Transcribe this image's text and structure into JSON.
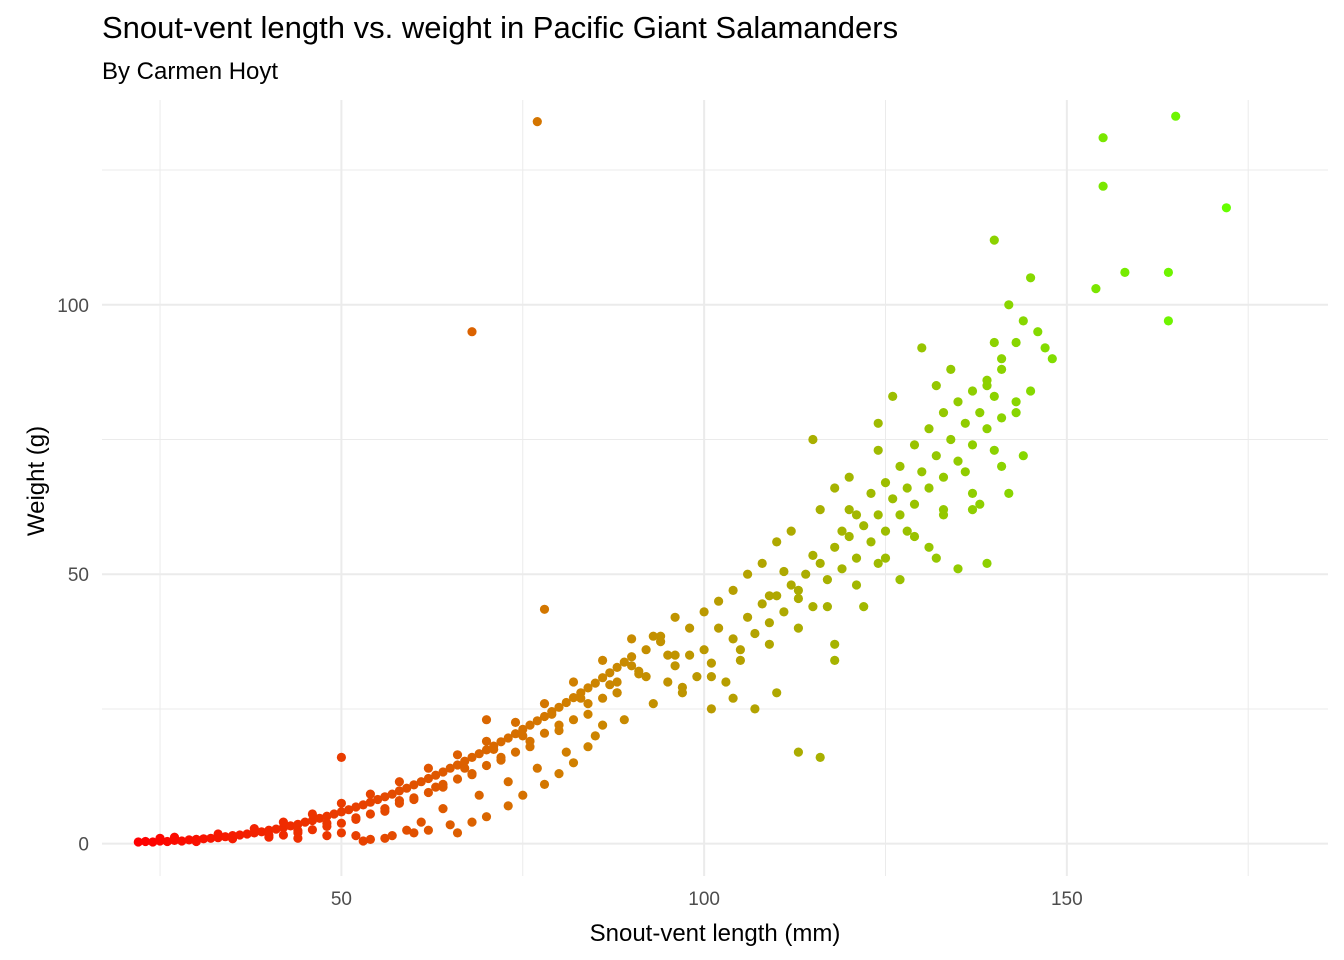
{
  "chart_data": {
    "type": "scatter",
    "title": "Snout-vent length vs. weight in Pacific Giant Salamanders",
    "subtitle": "By Carmen Hoyt",
    "xlabel": "Snout-vent length (mm)",
    "ylabel": "Weight (g)",
    "xlim": [
      17,
      186
    ],
    "ylim": [
      -6,
      138
    ],
    "x_ticks": [
      50,
      100,
      150
    ],
    "y_ticks": [
      0,
      50,
      100
    ],
    "x_tick_labels": [
      "50",
      "100",
      "150"
    ],
    "y_tick_labels": [
      "0",
      "50",
      "100"
    ],
    "grid": true,
    "legend": "none",
    "color_scale": {
      "low": "#ff0000",
      "high": "#66ff00",
      "mapped_to": "x"
    },
    "points": [
      [
        22,
        0.3
      ],
      [
        23,
        0.4
      ],
      [
        24,
        0.3
      ],
      [
        25,
        0.5
      ],
      [
        26,
        0.4
      ],
      [
        27,
        0.6
      ],
      [
        28,
        0.5
      ],
      [
        29,
        0.7
      ],
      [
        30,
        0.8
      ],
      [
        31,
        0.9
      ],
      [
        32,
        1.0
      ],
      [
        33,
        1.1
      ],
      [
        34,
        1.3
      ],
      [
        35,
        1.5
      ],
      [
        36,
        1.6
      ],
      [
        37,
        1.8
      ],
      [
        38,
        2.0
      ],
      [
        39,
        2.2
      ],
      [
        40,
        2.5
      ],
      [
        41,
        2.7
      ],
      [
        42,
        3.0
      ],
      [
        43,
        3.3
      ],
      [
        44,
        3.6
      ],
      [
        45,
        4.0
      ],
      [
        46,
        4.3
      ],
      [
        47,
        4.7
      ],
      [
        48,
        5.1
      ],
      [
        49,
        5.5
      ],
      [
        50,
        5.9
      ],
      [
        51,
        6.3
      ],
      [
        52,
        6.8
      ],
      [
        53,
        7.2
      ],
      [
        54,
        7.7
      ],
      [
        55,
        8.2
      ],
      [
        56,
        8.7
      ],
      [
        57,
        9.2
      ],
      [
        58,
        9.8
      ],
      [
        59,
        10.3
      ],
      [
        60,
        10.9
      ],
      [
        61,
        11.5
      ],
      [
        62,
        12.1
      ],
      [
        63,
        12.7
      ],
      [
        64,
        13.3
      ],
      [
        65,
        14.0
      ],
      [
        66,
        14.6
      ],
      [
        67,
        15.3
      ],
      [
        68,
        16.0
      ],
      [
        69,
        16.7
      ],
      [
        70,
        17.4
      ],
      [
        71,
        18.1
      ],
      [
        72,
        18.9
      ],
      [
        73,
        19.6
      ],
      [
        74,
        20.4
      ],
      [
        75,
        21.2
      ],
      [
        76,
        22.0
      ],
      [
        77,
        22.8
      ],
      [
        78,
        23.6
      ],
      [
        79,
        24.5
      ],
      [
        80,
        25.3
      ],
      [
        81,
        26.2
      ],
      [
        82,
        27.1
      ],
      [
        83,
        28.0
      ],
      [
        84,
        28.9
      ],
      [
        85,
        29.8
      ],
      [
        86,
        30.8
      ],
      [
        87,
        31.7
      ],
      [
        88,
        32.7
      ],
      [
        89,
        33.7
      ],
      [
        90,
        34.7
      ],
      [
        25,
        1.0
      ],
      [
        27,
        1.2
      ],
      [
        30,
        0.4
      ],
      [
        33,
        1.8
      ],
      [
        35,
        0.9
      ],
      [
        38,
        2.8
      ],
      [
        40,
        1.6
      ],
      [
        42,
        4.0
      ],
      [
        44,
        2.4
      ],
      [
        46,
        5.5
      ],
      [
        48,
        3.8
      ],
      [
        50,
        7.5
      ],
      [
        52,
        4.8
      ],
      [
        54,
        9.2
      ],
      [
        56,
        6.0
      ],
      [
        58,
        11.5
      ],
      [
        60,
        8.2
      ],
      [
        62,
        14.0
      ],
      [
        64,
        10.5
      ],
      [
        66,
        16.5
      ],
      [
        68,
        12.8
      ],
      [
        70,
        19.0
      ],
      [
        72,
        15.5
      ],
      [
        74,
        22.5
      ],
      [
        76,
        18.0
      ],
      [
        78,
        26.0
      ],
      [
        80,
        21.0
      ],
      [
        82,
        30.0
      ],
      [
        84,
        24.0
      ],
      [
        86,
        34.0
      ],
      [
        88,
        28.0
      ],
      [
        90,
        38.0
      ],
      [
        92,
        31.0
      ],
      [
        94,
        37.5
      ],
      [
        96,
        33.0
      ],
      [
        98,
        35.0
      ],
      [
        100,
        36.0
      ],
      [
        102,
        40.0
      ],
      [
        104,
        38.0
      ],
      [
        106,
        42.0
      ],
      [
        108,
        44.5
      ],
      [
        110,
        46.0
      ],
      [
        112,
        48.0
      ],
      [
        114,
        50.0
      ],
      [
        116,
        52.0
      ],
      [
        118,
        55.0
      ],
      [
        120,
        57.0
      ],
      [
        122,
        59.0
      ],
      [
        124,
        61.0
      ],
      [
        126,
        64.0
      ],
      [
        128,
        66.0
      ],
      [
        130,
        69.0
      ],
      [
        132,
        72.0
      ],
      [
        134,
        75.0
      ],
      [
        136,
        78.0
      ],
      [
        138,
        80.0
      ],
      [
        140,
        83.0
      ],
      [
        95,
        30.0
      ],
      [
        97,
        28.0
      ],
      [
        99,
        31.0
      ],
      [
        101,
        33.5
      ],
      [
        103,
        30.0
      ],
      [
        105,
        36.0
      ],
      [
        107,
        39.0
      ],
      [
        109,
        41.0
      ],
      [
        111,
        43.0
      ],
      [
        113,
        45.5
      ],
      [
        115,
        44.0
      ],
      [
        117,
        49.0
      ],
      [
        119,
        51.0
      ],
      [
        121,
        53.0
      ],
      [
        123,
        56.0
      ],
      [
        125,
        58.0
      ],
      [
        127,
        61.0
      ],
      [
        129,
        63.0
      ],
      [
        131,
        66.0
      ],
      [
        133,
        68.0
      ],
      [
        135,
        71.0
      ],
      [
        137,
        74.0
      ],
      [
        139,
        77.0
      ],
      [
        141,
        79.0
      ],
      [
        143,
        82.0
      ],
      [
        145,
        84.0
      ],
      [
        148,
        90.0
      ],
      [
        130,
        92.0
      ],
      [
        132,
        85.0
      ],
      [
        134,
        88.0
      ],
      [
        126,
        83.0
      ],
      [
        124,
        78.0
      ],
      [
        120,
        68.0
      ],
      [
        118,
        66.0
      ],
      [
        116,
        62.0
      ],
      [
        112,
        58.0
      ],
      [
        110,
        56.0
      ],
      [
        108,
        52.0
      ],
      [
        106,
        50.0
      ],
      [
        104,
        47.0
      ],
      [
        102,
        45.0
      ],
      [
        100,
        43.0
      ],
      [
        98,
        40.0
      ],
      [
        96,
        42.0
      ],
      [
        94,
        38.5
      ],
      [
        92,
        36.0
      ],
      [
        90,
        33.0
      ],
      [
        88,
        30.0
      ],
      [
        86,
        27.0
      ],
      [
        84,
        26.0
      ],
      [
        82,
        23.0
      ],
      [
        80,
        22.0
      ],
      [
        78,
        20.5
      ],
      [
        76,
        19.0
      ],
      [
        74,
        17.0
      ],
      [
        72,
        16.0
      ],
      [
        70,
        14.5
      ],
      [
        68,
        13.0
      ],
      [
        66,
        12.0
      ],
      [
        64,
        11.0
      ],
      [
        62,
        9.5
      ],
      [
        60,
        8.5
      ],
      [
        58,
        7.5
      ],
      [
        56,
        6.5
      ],
      [
        54,
        5.5
      ],
      [
        52,
        4.5
      ],
      [
        50,
        3.8
      ],
      [
        48,
        3.2
      ],
      [
        46,
        2.6
      ],
      [
        44,
        2.0
      ],
      [
        42,
        1.6
      ],
      [
        40,
        1.2
      ],
      [
        124,
        73.0
      ],
      [
        120,
        62.0
      ],
      [
        128,
        58.0
      ],
      [
        131,
        55.0
      ],
      [
        133,
        62.0
      ],
      [
        136,
        69.0
      ],
      [
        138,
        63.0
      ],
      [
        140,
        73.0
      ],
      [
        142,
        65.0
      ],
      [
        144,
        72.0
      ],
      [
        145,
        105.0
      ],
      [
        142,
        100.0
      ],
      [
        141,
        88.0
      ],
      [
        143,
        80.0
      ],
      [
        140,
        93.0
      ],
      [
        139,
        85.0
      ],
      [
        140,
        112.0
      ],
      [
        144,
        97.0
      ],
      [
        137,
        62.0
      ],
      [
        135,
        51.0
      ],
      [
        139,
        52.0
      ],
      [
        132,
        53.0
      ],
      [
        127,
        49.0
      ],
      [
        124,
        52.0
      ],
      [
        122,
        44.0
      ],
      [
        118,
        37.0
      ],
      [
        118,
        34.0
      ],
      [
        115,
        75.0
      ],
      [
        113,
        17.0
      ],
      [
        116,
        16.0
      ],
      [
        110,
        28.0
      ],
      [
        107,
        25.0
      ],
      [
        104,
        27.0
      ],
      [
        101,
        25.0
      ],
      [
        96,
        35.0
      ],
      [
        93,
        38.5
      ],
      [
        91,
        32.0
      ],
      [
        88,
        28.0
      ],
      [
        86,
        22.0
      ],
      [
        84,
        18.0
      ],
      [
        82,
        15.0
      ],
      [
        80,
        13.0
      ],
      [
        78,
        11.0
      ],
      [
        75,
        9.0
      ],
      [
        73,
        7.0
      ],
      [
        70,
        5.0
      ],
      [
        68,
        4.0
      ],
      [
        65,
        3.5
      ],
      [
        62,
        2.5
      ],
      [
        60,
        2.0
      ],
      [
        56,
        1.0
      ],
      [
        54,
        0.8
      ],
      [
        52,
        1.5
      ],
      [
        50,
        2.0
      ],
      [
        48,
        1.5
      ],
      [
        44,
        1.0
      ],
      [
        58,
        8.0
      ],
      [
        63,
        10.5
      ],
      [
        67,
        14.0
      ],
      [
        71,
        17.5
      ],
      [
        75,
        20.0
      ],
      [
        79,
        24.0
      ],
      [
        83,
        27.0
      ],
      [
        87,
        29.5
      ],
      [
        91,
        31.5
      ],
      [
        95,
        35.0
      ],
      [
        68,
        95.0
      ],
      [
        77,
        134.0
      ],
      [
        78,
        43.5
      ],
      [
        70,
        23.0
      ],
      [
        50,
        16.0
      ],
      [
        155,
        131.0
      ],
      [
        155,
        122.0
      ],
      [
        165,
        135.0
      ],
      [
        172,
        118.0
      ],
      [
        154,
        103.0
      ],
      [
        158,
        106.0
      ],
      [
        164,
        106.0
      ],
      [
        164,
        97.0
      ],
      [
        66,
        2.0
      ],
      [
        59,
        2.5
      ],
      [
        57,
        1.5
      ],
      [
        53,
        0.5
      ],
      [
        61,
        4.0
      ],
      [
        64,
        6.5
      ],
      [
        69,
        9.0
      ],
      [
        73,
        11.5
      ],
      [
        77,
        14.0
      ],
      [
        81,
        17.0
      ],
      [
        85,
        20.0
      ],
      [
        89,
        23.0
      ],
      [
        93,
        26.0
      ],
      [
        97,
        29.0
      ],
      [
        101,
        31.0
      ],
      [
        105,
        34.0
      ],
      [
        109,
        37.0
      ],
      [
        113,
        40.0
      ],
      [
        117,
        44.0
      ],
      [
        121,
        48.0
      ],
      [
        125,
        53.0
      ],
      [
        129,
        57.0
      ],
      [
        133,
        61.0
      ],
      [
        137,
        65.0
      ],
      [
        141,
        70.0
      ],
      [
        113,
        47.0
      ],
      [
        111,
        50.5
      ],
      [
        109,
        46.0
      ],
      [
        115,
        53.5
      ],
      [
        119,
        58.0
      ],
      [
        121,
        61.0
      ],
      [
        123,
        65.0
      ],
      [
        125,
        67.0
      ],
      [
        127,
        70.0
      ],
      [
        129,
        74.0
      ],
      [
        131,
        77.0
      ],
      [
        133,
        80.0
      ],
      [
        135,
        82.0
      ],
      [
        137,
        84.0
      ],
      [
        139,
        86.0
      ],
      [
        141,
        90.0
      ],
      [
        143,
        93.0
      ],
      [
        147,
        92.0
      ],
      [
        146,
        95.0
      ]
    ]
  }
}
